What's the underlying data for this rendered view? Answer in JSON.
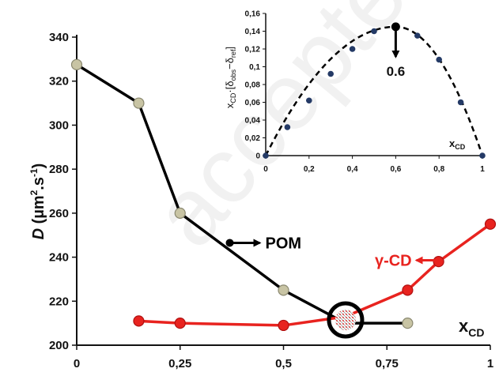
{
  "watermark": "accepted",
  "chart_data": [
    {
      "type": "line",
      "ylabel": "D (µm².s⁻¹)",
      "ylabel_parts": {
        "symbol": "D",
        "open": " (µm",
        "exp1": "2",
        "mid": ".s",
        "exp2": "-1",
        "close": ")"
      },
      "xlabel": "xCD",
      "xlabel_parts": {
        "main": "x",
        "sub": "CD"
      },
      "xlim": [
        0,
        1
      ],
      "ylim": [
        200,
        340
      ],
      "x_ticks": [
        0,
        0.25,
        0.5,
        0.75,
        1
      ],
      "x_tick_labels": [
        "0",
        "0,25",
        "0,5",
        "0,75",
        "1"
      ],
      "y_ticks": [
        200,
        220,
        240,
        260,
        280,
        300,
        320,
        340
      ],
      "y_tick_labels": [
        "200",
        "220",
        "240",
        "260",
        "280",
        "300",
        "320",
        "340"
      ],
      "series": [
        {
          "name": "POM",
          "color": "#000000",
          "marker_color": "#c8c4a4",
          "x": [
            0,
            0.15,
            0.25,
            0.5,
            0.65,
            0.8
          ],
          "y": [
            327.5,
            310,
            260,
            225,
            210,
            210
          ]
        },
        {
          "name": "γ-CD",
          "color": "#e8231f",
          "marker_color": "#e8231f",
          "x": [
            0.15,
            0.25,
            0.5,
            0.65,
            0.8,
            0.875,
            1
          ],
          "y": [
            211,
            210,
            209,
            213,
            225,
            238,
            255
          ]
        }
      ],
      "annotations": [
        {
          "text": "POM",
          "color": "#000000",
          "anchor_x": 0.37,
          "anchor_y": 246.5
        },
        {
          "text": "γ-CD",
          "color": "#e8231f",
          "anchor_x": 0.875,
          "anchor_y": 237.5
        }
      ],
      "highlight_circle": {
        "x": 0.65,
        "y": 211.5,
        "color": "#000000"
      }
    },
    {
      "type": "scatter",
      "role": "inset",
      "ylabel": "xCD·[δobs−δref]",
      "ylabel_parts": {
        "a": "x",
        "a_sub": "CD",
        "b": "·[δ",
        "b_sub": "obs",
        "c": "−δ",
        "c_sub": "ref",
        "d": "]"
      },
      "xlabel": "xCD",
      "xlabel_parts": {
        "main": "x",
        "sub": "CD"
      },
      "xlim": [
        0,
        1
      ],
      "ylim": [
        0,
        0.16
      ],
      "x_ticks": [
        0,
        0.2,
        0.4,
        0.6,
        0.8,
        1
      ],
      "x_tick_labels": [
        "0",
        "0,2",
        "0,4",
        "0,6",
        "0,8",
        "1"
      ],
      "y_ticks": [
        0,
        0.02,
        0.04,
        0.06,
        0.08,
        0.1,
        0.12,
        0.14,
        0.16
      ],
      "y_tick_labels": [
        "0",
        "0,02",
        "0,04",
        "0,06",
        "0,08",
        "0,1",
        "0,12",
        "0,14",
        "0,16"
      ],
      "series": [
        {
          "name": "",
          "color": "#243a66",
          "x": [
            0,
            0.1,
            0.2,
            0.3,
            0.4,
            0.5,
            0.6,
            0.7,
            0.8,
            0.9,
            1
          ],
          "y": [
            0,
            0.032,
            0.062,
            0.092,
            0.12,
            0.14,
            0.145,
            0.135,
            0.108,
            0.06,
            0
          ]
        }
      ],
      "fit_curve": {
        "style": "dashed",
        "color": "#000000",
        "peak_x": 0.6,
        "peak_y": 0.145
      },
      "annotations": [
        {
          "text": "0.6",
          "x": 0.6,
          "y": 0.145
        }
      ]
    }
  ]
}
